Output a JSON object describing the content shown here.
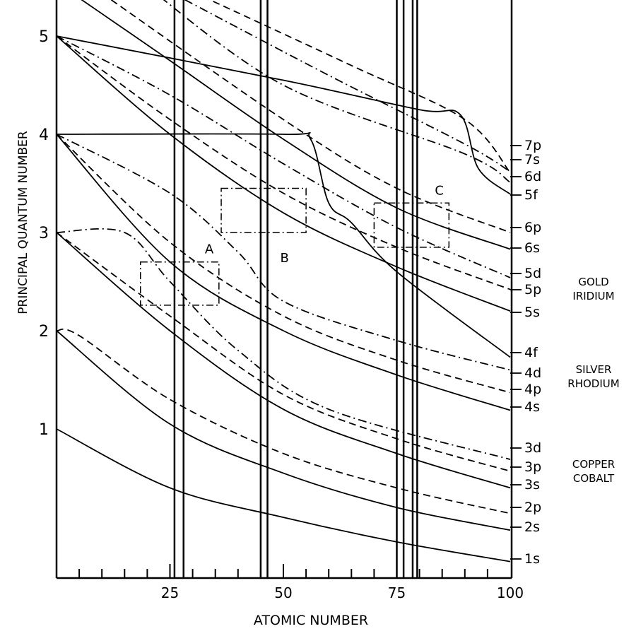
{
  "chart_data": {
    "type": "line",
    "title": "",
    "xlabel": "ATOMIC NUMBER",
    "ylabel": "PRINCIPAL QUANTUM NUMBER",
    "xlim": [
      0,
      100
    ],
    "ylim": [
      -0.5,
      5.5
    ],
    "x_ticks": [
      25,
      50,
      75,
      100
    ],
    "y_ticks": [
      1,
      2,
      3,
      4,
      5
    ],
    "grid": false,
    "vertical_lines": [
      26,
      28,
      45,
      46.5,
      75,
      76.5,
      78.5,
      79.5
    ],
    "series": [
      {
        "name": "1s",
        "style": "solid",
        "points": [
          [
            0,
            1
          ],
          [
            25,
            0.4
          ],
          [
            50,
            0.1
          ],
          [
            75,
            -0.15
          ],
          [
            100,
            -0.35
          ]
        ]
      },
      {
        "name": "2s",
        "style": "solid",
        "points": [
          [
            0,
            2
          ],
          [
            25,
            1.05
          ],
          [
            50,
            0.55
          ],
          [
            75,
            0.2
          ],
          [
            100,
            -0.03
          ]
        ]
      },
      {
        "name": "2p",
        "style": "dashed",
        "points": [
          [
            0,
            2
          ],
          [
            5,
            1.95
          ],
          [
            25,
            1.3
          ],
          [
            50,
            0.75
          ],
          [
            75,
            0.4
          ],
          [
            100,
            0.14
          ]
        ]
      },
      {
        "name": "3s",
        "style": "solid",
        "points": [
          [
            0,
            3
          ],
          [
            25,
            2.0
          ],
          [
            50,
            1.2
          ],
          [
            75,
            0.75
          ],
          [
            100,
            0.4
          ]
        ]
      },
      {
        "name": "3p",
        "style": "dashed",
        "points": [
          [
            0,
            3
          ],
          [
            25,
            2.15
          ],
          [
            50,
            1.35
          ],
          [
            75,
            0.9
          ],
          [
            100,
            0.57
          ]
        ]
      },
      {
        "name": "3d",
        "style": "dashdot",
        "points": [
          [
            0,
            3
          ],
          [
            15,
            3
          ],
          [
            25,
            2.5
          ],
          [
            40,
            1.8
          ],
          [
            60,
            1.2
          ],
          [
            100,
            0.69
          ]
        ]
      },
      {
        "name": "4s",
        "style": "solid",
        "points": [
          [
            0,
            4
          ],
          [
            25,
            2.7
          ],
          [
            50,
            2.0
          ],
          [
            75,
            1.55
          ],
          [
            100,
            1.19
          ]
        ]
      },
      {
        "name": "4p",
        "style": "dashed",
        "points": [
          [
            0,
            4
          ],
          [
            25,
            2.9
          ],
          [
            50,
            2.15
          ],
          [
            75,
            1.7
          ],
          [
            100,
            1.37
          ]
        ]
      },
      {
        "name": "4d",
        "style": "dashdot",
        "points": [
          [
            0,
            4
          ],
          [
            25,
            3.4
          ],
          [
            40,
            2.8
          ],
          [
            50,
            2.3
          ],
          [
            75,
            1.9
          ],
          [
            100,
            1.6
          ]
        ]
      },
      {
        "name": "4f",
        "style": "solid",
        "points": [
          [
            0,
            4
          ],
          [
            50,
            4
          ],
          [
            56,
            3.95
          ],
          [
            60,
            3.3
          ],
          [
            65,
            3.1
          ],
          [
            75,
            2.6
          ],
          [
            100,
            1.73
          ]
        ]
      },
      {
        "name": "5s",
        "style": "solid",
        "points": [
          [
            0,
            5
          ],
          [
            25,
            4.0
          ],
          [
            50,
            3.2
          ],
          [
            75,
            2.65
          ],
          [
            100,
            2.2
          ]
        ]
      },
      {
        "name": "5p",
        "style": "dashed",
        "points": [
          [
            0,
            5
          ],
          [
            25,
            4.15
          ],
          [
            50,
            3.4
          ],
          [
            75,
            2.85
          ],
          [
            100,
            2.42
          ]
        ]
      },
      {
        "name": "5d",
        "style": "dashdot",
        "points": [
          [
            0,
            5
          ],
          [
            25,
            4.4
          ],
          [
            50,
            3.7
          ],
          [
            75,
            3.05
          ],
          [
            100,
            2.54
          ]
        ]
      },
      {
        "name": "5f",
        "style": "solid",
        "points": [
          [
            0,
            5
          ],
          [
            50,
            4.55
          ],
          [
            80,
            4.25
          ],
          [
            89,
            4.2
          ],
          [
            93,
            3.65
          ],
          [
            100,
            3.39
          ]
        ]
      },
      {
        "name": "6s",
        "style": "solid",
        "points": [
          [
            3,
            5.45
          ],
          [
            25,
            4.75
          ],
          [
            50,
            3.95
          ],
          [
            75,
            3.25
          ],
          [
            100,
            2.83
          ]
        ]
      },
      {
        "name": "6p",
        "style": "dashed",
        "points": [
          [
            8,
            5.5
          ],
          [
            50,
            4.15
          ],
          [
            75,
            3.45
          ],
          [
            100,
            3.0
          ]
        ]
      },
      {
        "name": "6d",
        "style": "dashdot",
        "points": [
          [
            20,
            5.5
          ],
          [
            50,
            4.5
          ],
          [
            90,
            3.8
          ],
          [
            100,
            3.51
          ]
        ]
      },
      {
        "name": "7s",
        "style": "dashdot",
        "points": [
          [
            25,
            5.45
          ],
          [
            60,
            4.6
          ],
          [
            90,
            3.9
          ],
          [
            100,
            3.62
          ]
        ]
      },
      {
        "name": "7p",
        "style": "dashed",
        "points": [
          [
            30,
            5.45
          ],
          [
            65,
            4.7
          ],
          [
            90,
            4.15
          ],
          [
            100,
            3.61
          ]
        ]
      }
    ],
    "annotation_boxes": [
      {
        "label": "A",
        "z": [
          18.5,
          35.8
        ],
        "n": [
          2.26,
          2.7
        ]
      },
      {
        "label": "B",
        "z": [
          36.3,
          55
        ],
        "n": [
          3.0,
          3.45
        ]
      },
      {
        "label": "C",
        "z": [
          70,
          86.5
        ],
        "n": [
          2.85,
          3.3
        ]
      }
    ],
    "right_labels": [
      "7p",
      "7s",
      "6d",
      "5f",
      "6p",
      "6s",
      "5d",
      "5p",
      "5s",
      "4f",
      "4d",
      "4p",
      "4s",
      "3d",
      "3p",
      "3s",
      "2p",
      "2s",
      "1s"
    ],
    "element_groups": [
      {
        "line1": "GOLD",
        "line2": "IRIDIUM"
      },
      {
        "line1": "SILVER",
        "line2": "RHODIUM"
      },
      {
        "line1": "COPPER",
        "line2": "COBALT"
      }
    ]
  }
}
